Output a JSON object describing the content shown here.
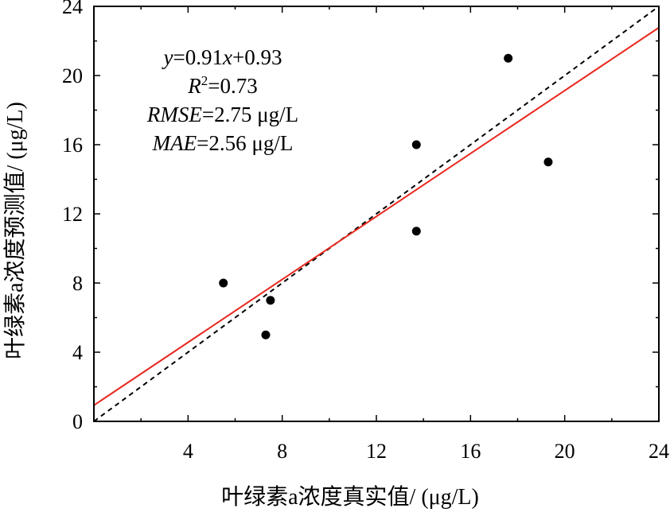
{
  "chart_data": {
    "type": "scatter",
    "xlabel": "叶绿素a浓度真实值/ (μg/L)",
    "ylabel": "叶绿素a浓度预测值/ (μg/L)",
    "xlim": [
      0,
      24
    ],
    "ylim": [
      0,
      24
    ],
    "x_ticks": [
      4,
      8,
      12,
      16,
      20,
      24
    ],
    "y_ticks": [
      0,
      4,
      8,
      12,
      16,
      20,
      24
    ],
    "points": [
      {
        "x": 5.5,
        "y": 8.0
      },
      {
        "x": 7.3,
        "y": 5.0
      },
      {
        "x": 7.5,
        "y": 7.0
      },
      {
        "x": 13.7,
        "y": 16.0
      },
      {
        "x": 13.7,
        "y": 11.0
      },
      {
        "x": 17.6,
        "y": 21.0
      },
      {
        "x": 19.3,
        "y": 15.0
      }
    ],
    "fit_line": {
      "slope": 0.91,
      "intercept": 0.93,
      "color": "#e8281e"
    },
    "identity_line": {
      "style": "dashed",
      "color": "#000000"
    },
    "annotations": {
      "equation": {
        "y": "y",
        "eq": "=0.91",
        "x": "x",
        "rest": "+0.93"
      },
      "r2": {
        "r": "R",
        "sup": "2",
        "rest": "=0.73"
      },
      "rmse": {
        "name": "RMSE",
        "rest": "=2.75 μg/L"
      },
      "mae": {
        "name": "MAE",
        "rest": "=2.56 μg/L"
      }
    }
  }
}
